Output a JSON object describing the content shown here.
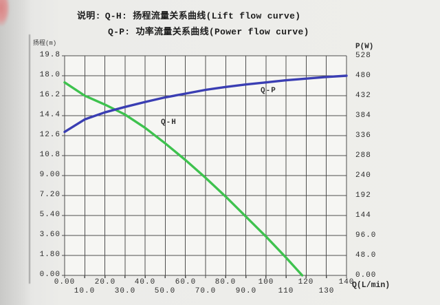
{
  "legend": {
    "prefix": "说明:",
    "line1": "Q-H: 扬程流量关系曲线(Lift flow curve)",
    "line2": "Q-P: 功率流量关系曲线(Power flow curve)"
  },
  "chart_data": {
    "type": "line",
    "title": "",
    "grid": true,
    "x_axis": {
      "label": "Q(L/min)",
      "min": 0,
      "max": 140,
      "tick_step": 10,
      "ticks": [
        "0.00",
        "10.0",
        "20.0",
        "30.0",
        "40.0",
        "50.0",
        "60.0",
        "70.0",
        "80.0",
        "90.0",
        "100",
        "110",
        "120",
        "130",
        "140"
      ]
    },
    "y_axis_left": {
      "label": "扬程(m)",
      "min": 0,
      "max": 19.8,
      "tick_step": 1.8,
      "ticks": [
        "19.8",
        "18.0",
        "16.2",
        "14.4",
        "12.6",
        "10.8",
        "9.00",
        "7.20",
        "5.40",
        "3.60",
        "1.80",
        "0.00"
      ]
    },
    "y_axis_right": {
      "label": "P(W)",
      "min": 0,
      "max": 528,
      "tick_step": 48,
      "ticks": [
        "528",
        "480",
        "432",
        "384",
        "336",
        "288",
        "240",
        "192",
        "144",
        "96.0",
        "48.0",
        "0.00"
      ]
    },
    "series": [
      {
        "name": "Q-H",
        "axis": "left",
        "color": "#3ec24e",
        "points": [
          [
            0,
            17.4
          ],
          [
            10,
            16.2
          ],
          [
            20,
            15.4
          ],
          [
            30,
            14.5
          ],
          [
            40,
            13.3
          ],
          [
            50,
            11.9
          ],
          [
            60,
            10.4
          ],
          [
            70,
            8.8
          ],
          [
            80,
            7.1
          ],
          [
            90,
            5.3
          ],
          [
            100,
            3.5
          ],
          [
            110,
            1.6
          ],
          [
            118,
            0
          ]
        ]
      },
      {
        "name": "Q-P",
        "axis": "right",
        "color": "#3a3eb3",
        "points": [
          [
            0,
            345
          ],
          [
            10,
            375
          ],
          [
            20,
            392
          ],
          [
            30,
            405
          ],
          [
            40,
            417
          ],
          [
            50,
            428
          ],
          [
            60,
            437
          ],
          [
            70,
            446
          ],
          [
            80,
            453
          ],
          [
            90,
            459
          ],
          [
            100,
            464
          ],
          [
            110,
            469
          ],
          [
            120,
            473
          ],
          [
            130,
            477
          ],
          [
            140,
            480
          ]
        ]
      }
    ]
  }
}
